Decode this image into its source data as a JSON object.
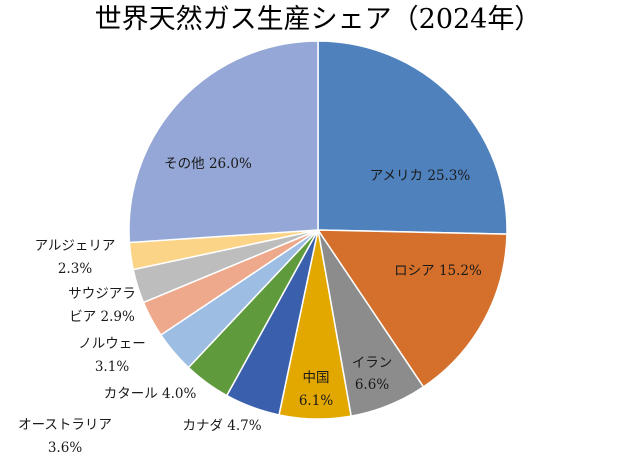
{
  "chart_data": {
    "type": "pie",
    "title": "世界天然ガス生産シェア（2024年）",
    "start_angle_deg": 0,
    "direction": "clockwise",
    "slices": [
      {
        "name": "アメリカ",
        "value": 25.3,
        "value_label": "25.3%",
        "color": "#4f81bd"
      },
      {
        "name": "ロシア",
        "value": 15.2,
        "value_label": "15.2%",
        "color": "#d4702b"
      },
      {
        "name": "イラン",
        "value": 6.6,
        "value_label": "6.6%",
        "color": "#8c8c8c"
      },
      {
        "name": "中国",
        "value": 6.1,
        "value_label": "6.1%",
        "color": "#e3a800"
      },
      {
        "name": "カナダ",
        "value": 4.7,
        "value_label": "4.7%",
        "color": "#3a5fac"
      },
      {
        "name": "カタール",
        "value": 4.0,
        "value_label": "4.0%",
        "color": "#5f9a3d"
      },
      {
        "name": "オーストラリア",
        "value": 3.6,
        "value_label": "3.6%",
        "color": "#9dbde3"
      },
      {
        "name": "ノルウェー",
        "value": 3.1,
        "value_label": "3.1%",
        "color": "#eea98c"
      },
      {
        "name": "サウジアラビア",
        "value": 2.9,
        "value_label": "2.9%",
        "color": "#bdbdbd"
      },
      {
        "name": "アルジェリア",
        "value": 2.3,
        "value_label": "2.3%",
        "color": "#fcd488"
      },
      {
        "name": "その他",
        "value": 26.0,
        "value_label": "26.0%",
        "color": "#94a7d6"
      }
    ]
  }
}
